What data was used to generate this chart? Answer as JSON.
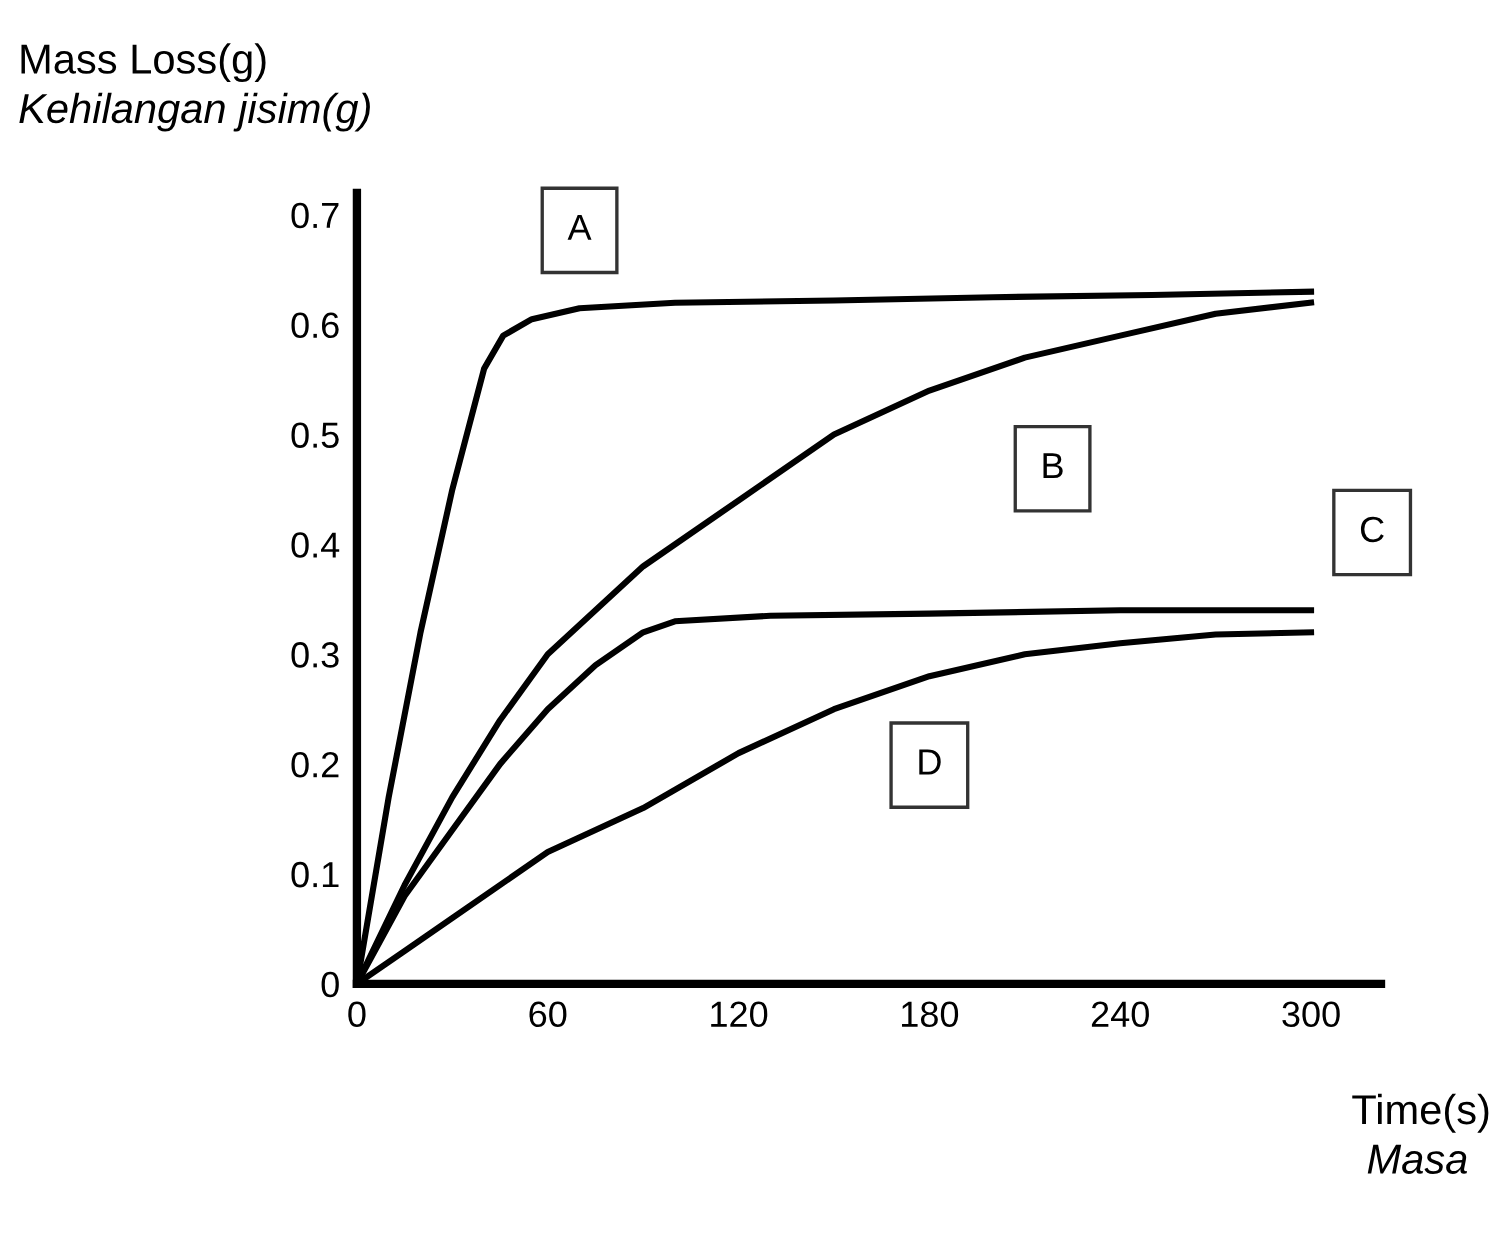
{
  "chart_data": {
    "type": "line",
    "xlabel": "Time(s)\nMasa",
    "ylabel": "Mass Loss(g)\nKehilangan jisim(g)",
    "xlim": [
      0,
      322
    ],
    "ylim": [
      0,
      0.72
    ],
    "xticks": [
      0,
      60,
      120,
      180,
      240,
      300
    ],
    "yticks": [
      0,
      0.1,
      0.2,
      0.3,
      0.4,
      0.5,
      0.6,
      0.7
    ],
    "grid": false,
    "legend": false,
    "marker": "none",
    "line_style": "solid",
    "series": [
      {
        "name": "A",
        "color": "#000000",
        "x": [
          0,
          10,
          20,
          30,
          40,
          46,
          55,
          70,
          100,
          150,
          200,
          250,
          300
        ],
        "values": [
          0,
          0.17,
          0.32,
          0.45,
          0.56,
          0.59,
          0.605,
          0.615,
          0.62,
          0.622,
          0.625,
          0.627,
          0.63
        ]
      },
      {
        "name": "B",
        "color": "#000000",
        "x": [
          0,
          15,
          30,
          45,
          60,
          90,
          120,
          150,
          180,
          210,
          240,
          270,
          300
        ],
        "values": [
          0,
          0.09,
          0.17,
          0.24,
          0.3,
          0.38,
          0.44,
          0.5,
          0.54,
          0.57,
          0.59,
          0.61,
          0.62
        ]
      },
      {
        "name": "C",
        "color": "#000000",
        "x": [
          0,
          15,
          30,
          45,
          60,
          75,
          90,
          100,
          130,
          180,
          240,
          300
        ],
        "values": [
          0,
          0.08,
          0.14,
          0.2,
          0.25,
          0.29,
          0.32,
          0.33,
          0.335,
          0.337,
          0.34,
          0.34
        ]
      },
      {
        "name": "D",
        "color": "#000000",
        "x": [
          0,
          15,
          30,
          60,
          90,
          120,
          150,
          180,
          210,
          240,
          270,
          300
        ],
        "values": [
          0,
          0.03,
          0.06,
          0.12,
          0.16,
          0.21,
          0.25,
          0.28,
          0.3,
          0.31,
          0.318,
          0.32
        ]
      }
    ]
  }
}
